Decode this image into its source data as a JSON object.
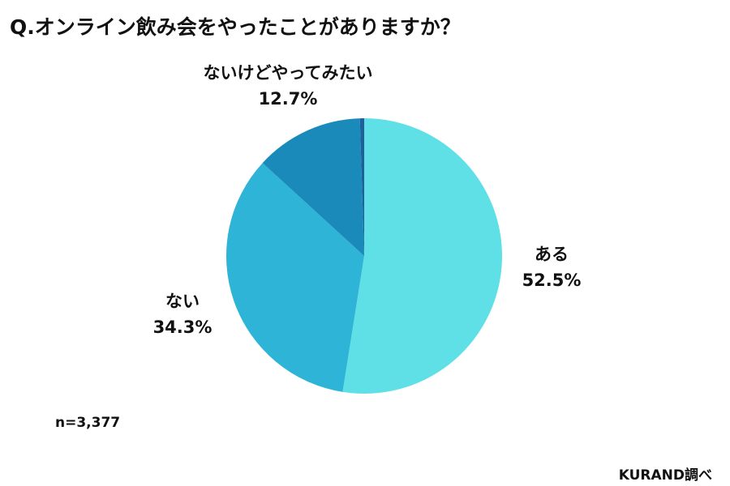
{
  "title": "Q.オンライン飲み会をやったことがありますか？",
  "chart_data": {
    "type": "pie",
    "title": "Q.オンライン飲み会をやったことがありますか？",
    "slices": [
      {
        "label": "ある",
        "value": 52.5,
        "display": "52.5%",
        "color": "#5ee0e6"
      },
      {
        "label": "ない",
        "value": 34.3,
        "display": "34.3%",
        "color": "#2db4d6"
      },
      {
        "label": "ないけどやってみたい",
        "value": 12.7,
        "display": "12.7%",
        "color": "#1a8abb"
      },
      {
        "label": "",
        "value": 0.5,
        "display": "",
        "color": "#1f5f9a"
      }
    ],
    "start": "12 o'clock",
    "direction": "clockwise"
  },
  "sample_note": "n=3,377",
  "source": "KURAND調べ"
}
